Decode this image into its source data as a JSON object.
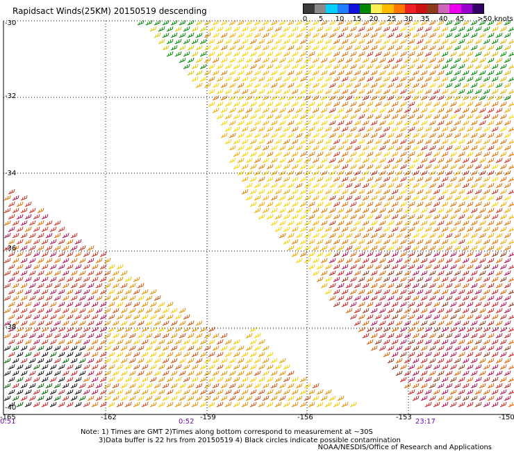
{
  "title": "Rapidsact Winds(25KM) 20150519 descending",
  "scale": {
    "labels": [
      "0",
      "5",
      "10",
      "15",
      "20",
      "25",
      "30",
      "35",
      "40",
      "45",
      ">50 knots"
    ],
    "colors": [
      "#3a3a3a",
      "#8a8a8a",
      "#00cfff",
      "#1f7fff",
      "#1111dd",
      "#008800",
      "#ffee55",
      "#ffbb00",
      "#ff7700",
      "#ee2222",
      "#cc1111",
      "#8b3a1a",
      "#cc66bb",
      "#ee00ee",
      "#9900cc",
      "#330066"
    ]
  },
  "axes": {
    "lat_labels": [
      "-30",
      "-32",
      "-34",
      "-36",
      "-38",
      "-40"
    ],
    "lon_labels": [
      "-165",
      "-162",
      "-159",
      "-156",
      "-153",
      "-150"
    ],
    "time_labels": [
      "0:51",
      "0:52",
      "23:17"
    ]
  },
  "notes": {
    "line1": "Note: 1) Times are GMT 2)Times along bottom correspond to measurement at ~30S",
    "line2": "3)Data buffer is 22 hrs from 20150519 4) Black circles indicate possible contamination"
  },
  "credit": "NOAA/NESDIS/Office of Research and Applications",
  "colors": {
    "time_label": "#6a0dad",
    "grid": "#000000"
  }
}
